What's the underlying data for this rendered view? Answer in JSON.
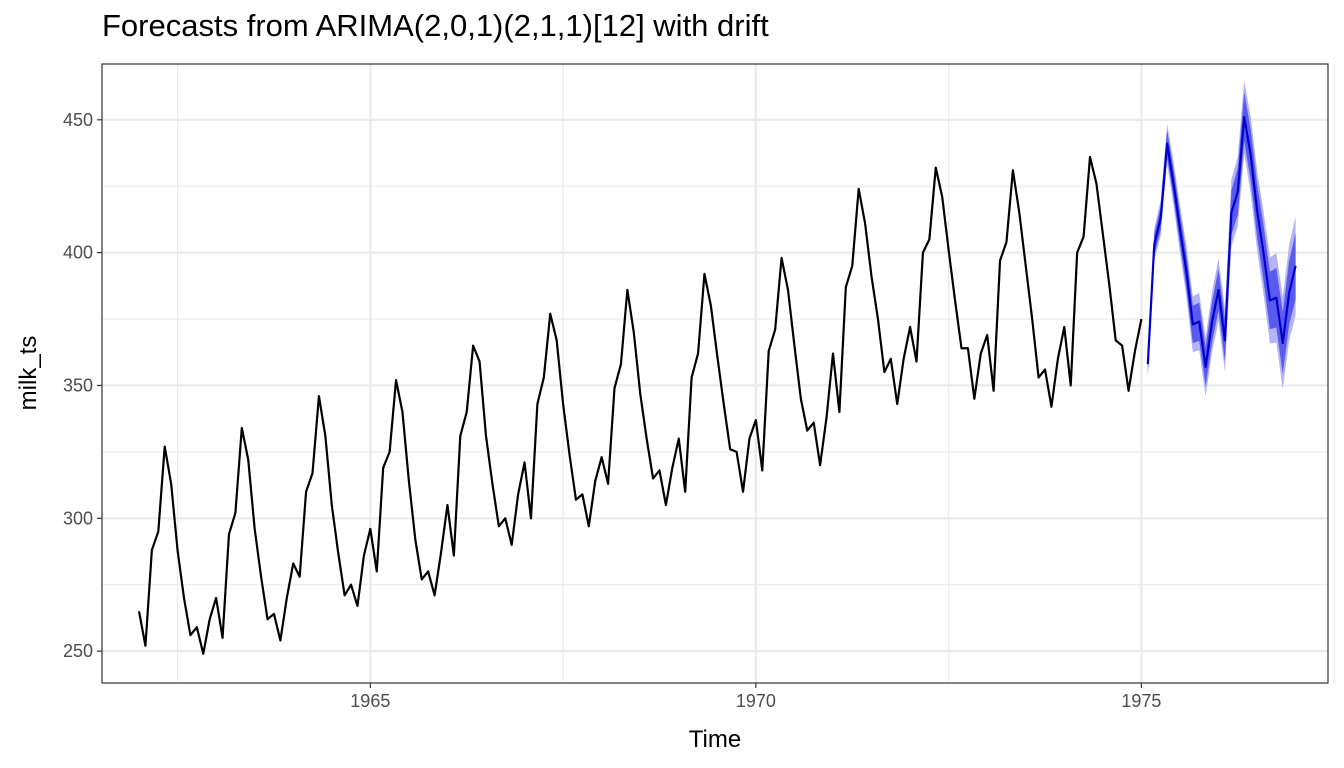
{
  "chart_data": {
    "type": "line",
    "title": "Forecasts from ARIMA(2,0,1)(2,1,1)[12] with drift",
    "xlabel": "Time",
    "ylabel": "milk_ts",
    "xlim": [
      1961.52,
      1977.42
    ],
    "ylim": [
      238,
      471
    ],
    "x_major_ticks": [
      1965,
      1970,
      1975
    ],
    "x_minor_ticks": [
      1962.5,
      1967.5,
      1972.5,
      1977.5
    ],
    "y_major_ticks": [
      250,
      300,
      350,
      400,
      450
    ],
    "y_minor_ticks": [
      275,
      325,
      375,
      425
    ],
    "grid": true,
    "colors": {
      "observed": "#000000",
      "forecast": "#0000cc",
      "pi80": "#5a5aee",
      "pi95": "#b3b3f7",
      "grid": "#ebebeb",
      "panel_border": "#333333"
    },
    "series": [
      {
        "name": "observed",
        "start": 1962.0,
        "frequency": 12,
        "values": [
          265,
          252,
          288,
          295,
          327,
          313,
          288,
          270,
          256,
          259,
          249,
          262,
          270,
          255,
          294,
          302,
          334,
          322,
          296,
          278,
          262,
          264,
          254,
          270,
          283,
          278,
          310,
          317,
          346,
          331,
          305,
          287,
          271,
          275,
          267,
          286,
          296,
          280,
          319,
          325,
          352,
          340,
          314,
          292,
          277,
          280,
          271,
          287,
          305,
          286,
          331,
          340,
          365,
          359,
          331,
          313,
          297,
          300,
          290,
          309,
          321,
          300,
          343,
          353,
          377,
          367,
          343,
          324,
          307,
          309,
          297,
          314,
          323,
          313,
          349,
          358,
          386,
          370,
          347,
          330,
          315,
          318,
          305,
          319,
          330,
          310,
          353,
          362,
          392,
          380,
          361,
          343,
          326,
          325,
          310,
          330,
          337,
          318,
          363,
          371,
          398,
          386,
          365,
          345,
          333,
          336,
          320,
          338,
          362,
          340,
          387,
          395,
          424,
          411,
          391,
          375,
          355,
          360,
          343,
          360,
          372,
          359,
          400,
          405,
          432,
          421,
          401,
          382,
          364,
          364,
          345,
          362,
          369,
          348,
          397,
          404,
          431,
          415,
          395,
          375,
          353,
          356,
          342,
          360,
          372,
          350,
          400,
          406,
          436,
          426,
          407,
          388,
          367,
          365,
          348,
          363,
          375
        ]
      },
      {
        "name": "forecast",
        "start": 1975.0833,
        "frequency": 12,
        "values": [
          358,
          403,
          413,
          441,
          426,
          409,
          393,
          373,
          374,
          357,
          374,
          386,
          367,
          415,
          423,
          451,
          437,
          416,
          400,
          382,
          383,
          366,
          385,
          395
        ],
        "pi80_halfwidth": [
          3.5,
          4,
          4.5,
          5,
          5.5,
          6,
          6.5,
          7,
          7.2,
          7.4,
          7.6,
          7.8,
          8,
          8.4,
          8.8,
          9.2,
          9.6,
          10,
          10.4,
          10.8,
          11.2,
          11.6,
          12,
          12.4
        ],
        "pi95_halfwidth": [
          5.3,
          6,
          6.7,
          7.5,
          8.2,
          9,
          9.7,
          10.5,
          10.8,
          11.1,
          11.4,
          11.7,
          12,
          12.6,
          13.2,
          13.8,
          14.4,
          15,
          15.6,
          16.2,
          16.8,
          17.4,
          18,
          18.6
        ]
      }
    ]
  }
}
